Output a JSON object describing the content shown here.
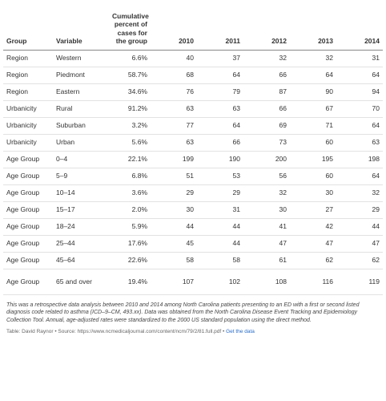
{
  "table": {
    "headers": {
      "group": "Group",
      "variable": "Variable",
      "cumulative": "Cumulative percent of cases for the group",
      "y2010": "2010",
      "y2011": "2011",
      "y2012": "2012",
      "y2013": "2013",
      "y2014": "2014"
    },
    "rows": [
      {
        "group": "Region",
        "variable": "Western",
        "cum": "6.6%",
        "y2010": "40",
        "y2011": "37",
        "y2012": "32",
        "y2013": "32",
        "y2014": "31"
      },
      {
        "group": "Region",
        "variable": "Piedmont",
        "cum": "58.7%",
        "y2010": "68",
        "y2011": "64",
        "y2012": "66",
        "y2013": "64",
        "y2014": "64"
      },
      {
        "group": "Region",
        "variable": "Eastern",
        "cum": "34.6%",
        "y2010": "76",
        "y2011": "79",
        "y2012": "87",
        "y2013": "90",
        "y2014": "94"
      },
      {
        "group": "Urbanicity",
        "variable": "Rural",
        "cum": "91.2%",
        "y2010": "63",
        "y2011": "63",
        "y2012": "66",
        "y2013": "67",
        "y2014": "70"
      },
      {
        "group": "Urbanicity",
        "variable": "Suburban",
        "cum": "3.2%",
        "y2010": "77",
        "y2011": "64",
        "y2012": "69",
        "y2013": "71",
        "y2014": "64"
      },
      {
        "group": "Urbanicity",
        "variable": "Urban",
        "cum": "5.6%",
        "y2010": "63",
        "y2011": "66",
        "y2012": "73",
        "y2013": "60",
        "y2014": "63"
      },
      {
        "group": "Age Group",
        "variable": "0–4",
        "cum": "22.1%",
        "y2010": "199",
        "y2011": "190",
        "y2012": "200",
        "y2013": "195",
        "y2014": "198"
      },
      {
        "group": "Age Group",
        "variable": "5–9",
        "cum": "6.8%",
        "y2010": "51",
        "y2011": "53",
        "y2012": "56",
        "y2013": "60",
        "y2014": "64"
      },
      {
        "group": "Age Group",
        "variable": "10–14",
        "cum": "3.6%",
        "y2010": "29",
        "y2011": "29",
        "y2012": "32",
        "y2013": "30",
        "y2014": "32"
      },
      {
        "group": "Age Group",
        "variable": "15–17",
        "cum": "2.0%",
        "y2010": "30",
        "y2011": "31",
        "y2012": "30",
        "y2013": "27",
        "y2014": "29"
      },
      {
        "group": "Age Group",
        "variable": "18–24",
        "cum": "5.9%",
        "y2010": "44",
        "y2011": "44",
        "y2012": "41",
        "y2013": "42",
        "y2014": "44"
      },
      {
        "group": "Age Group",
        "variable": "25–44",
        "cum": "17.6%",
        "y2010": "45",
        "y2011": "44",
        "y2012": "47",
        "y2013": "47",
        "y2014": "47"
      },
      {
        "group": "Age Group",
        "variable": "45–64",
        "cum": "22.6%",
        "y2010": "58",
        "y2011": "58",
        "y2012": "61",
        "y2013": "62",
        "y2014": "62"
      },
      {
        "group": "Age Group",
        "variable": "65 and over",
        "cum": "19.4%",
        "y2010": "107",
        "y2011": "102",
        "y2012": "108",
        "y2013": "116",
        "y2014": "119"
      }
    ]
  },
  "notes": "This was a retrospective data analysis between 2010 and 2014 among North Carolina patients presenting to an ED with a first or second listed diagnosis code related to asthma (ICD–9–CM, 493.xx). Data was obtained from the North Carolina Disease Event Tracking and Epidemiology Collection Tool. Annual, age-adjusted rates were standardized to the 2000 US standard population using the direct method.",
  "source": {
    "text": "Table: David Raynor • Source: https://www.ncmedicaljournal.com/content/ncm/79/2/81.full.pdf •",
    "link": "Get the data"
  }
}
